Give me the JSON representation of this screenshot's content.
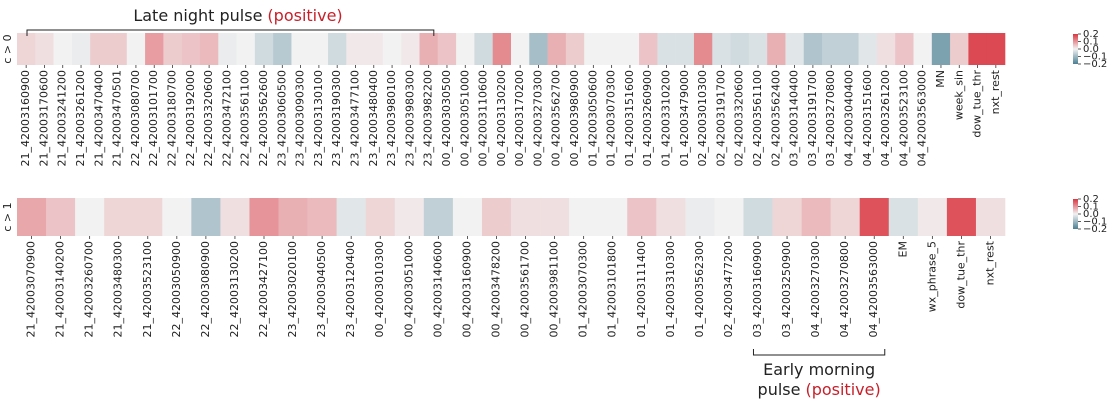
{
  "chart_data": [
    {
      "type": "heatmap",
      "ylabel": "c > 0",
      "annotation": [
        {
          "text": "Late night pulse",
          "highlight": "(positive)"
        }
      ],
      "categories": [
        "21_42003160900",
        "21_42003170600",
        "21_42003241200",
        "21_42003261200",
        "21_42003470400",
        "21_42003470501",
        "22_42003080700",
        "22_42003101700",
        "22_42003180700",
        "22_42003192000",
        "22_42003320600",
        "22_42003472100",
        "22_42003561100",
        "22_42003562600",
        "23_42003060500",
        "23_42003090300",
        "23_42003130100",
        "23_42003190300",
        "23_42003477100",
        "23_42003480400",
        "23_42003980100",
        "23_42003980300",
        "23_42003982200",
        "00_42003030500",
        "00_42003051000",
        "00_42003110600",
        "00_42003130200",
        "00_42003170200",
        "00_42003270300",
        "00_42003562700",
        "00_42003980900",
        "01_42003050600",
        "01_42003070300",
        "01_42003151600",
        "01_42003260900",
        "01_42003310200",
        "01_42003479000",
        "02_42003010300",
        "02_42003191700",
        "02_42003320600",
        "02_42003561100",
        "02_42003562400",
        "03_42003140400",
        "03_42003191700",
        "03_42003270800",
        "04_42003040400",
        "04_42003151600",
        "04_42003261200",
        "04_42003523100",
        "04_42003563000",
        "MN",
        "week_sin",
        "dow_tue_thr",
        "nxt_rest"
      ],
      "values": [
        0.03,
        0.02,
        0,
        -0.01,
        0.04,
        0.04,
        0,
        0.09,
        0.04,
        0.05,
        0.06,
        -0.01,
        0,
        -0.04,
        -0.07,
        0,
        0,
        -0.04,
        0.01,
        0.01,
        0,
        0.01,
        0.07,
        0.05,
        0,
        -0.04,
        0.11,
        0,
        -0.09,
        0.07,
        0.04,
        0,
        0,
        0,
        0.05,
        -0.03,
        -0.03,
        0.11,
        -0.03,
        -0.04,
        -0.03,
        0.07,
        -0.02,
        -0.08,
        -0.06,
        -0.06,
        -0.02,
        0.02,
        0.05,
        0,
        -0.14,
        0.04,
        0.18,
        0.18
      ],
      "clim": [
        -0.2,
        0.2
      ],
      "colors": [
        "#4a7f93",
        "#f2f2f2",
        "#d93640"
      ],
      "cticks": [
        0.2,
        0.1,
        {
          "value": 0,
          "label": "0.0"
        },
        {
          "value": -0.1,
          "label": "−0.1"
        },
        {
          "value": -0.2,
          "label": "−0.2"
        }
      ]
    },
    {
      "type": "heatmap",
      "ylabel": "c > 1",
      "annotation": [
        {
          "text": "Early morning"
        },
        {
          "text": "pulse",
          "highlight": "(positive)"
        }
      ],
      "categories": [
        "21_42003070900",
        "21_42003140200",
        "21_42003260700",
        "21_42003480300",
        "21_42003523100",
        "22_42003050900",
        "22_42003080900",
        "22_42003130200",
        "22_42003427100",
        "23_42003020100",
        "23_42003040500",
        "23_42003120400",
        "00_42003010300",
        "00_42003051000",
        "00_42003140600",
        "00_42003160900",
        "00_42003478200",
        "00_42003561700",
        "00_42003981100",
        "01_42003070300",
        "01_42003101800",
        "01_42003111400",
        "01_42003310300",
        "01_42003562300",
        "02_42003477200",
        "03_42003160900",
        "03_42003250900",
        "04_42003270300",
        "04_42003270800",
        "04_42003563000",
        "EM",
        "wx_phrase_5",
        "dow_tue_thr",
        "nxt_rest"
      ],
      "values": [
        0.08,
        0.05,
        0,
        0.03,
        0.03,
        0,
        -0.08,
        0.02,
        0.1,
        0.07,
        0.06,
        -0.02,
        0.03,
        0.01,
        -0.06,
        0,
        0.04,
        0.02,
        0.02,
        0,
        0,
        0.05,
        0.02,
        -0.01,
        0,
        -0.04,
        0.03,
        0.06,
        0.03,
        0.17,
        -0.03,
        0.01,
        0.17,
        0.02
      ],
      "clim": [
        -0.2,
        0.2
      ],
      "colors": [
        "#4a7f93",
        "#f2f2f2",
        "#d93640"
      ],
      "cticks": [
        0.2,
        0.1,
        {
          "value": 0,
          "label": "0.0"
        },
        {
          "value": -0.1,
          "label": "−0.1"
        },
        {
          "value": -0.2,
          "label": "−0.2"
        }
      ]
    }
  ]
}
